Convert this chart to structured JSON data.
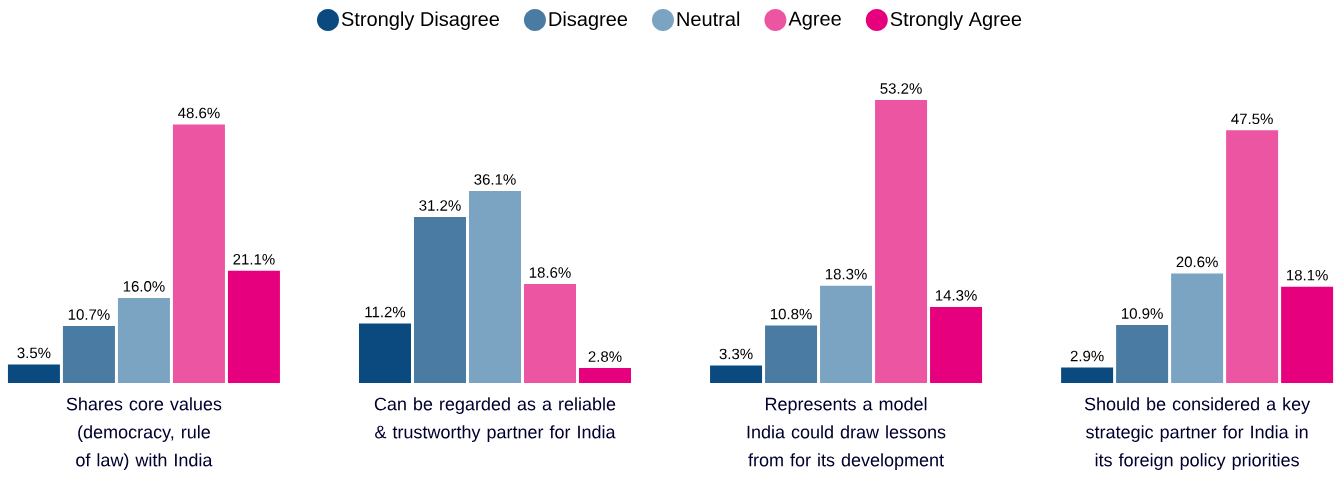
{
  "chart_data": {
    "type": "bar",
    "categories": [
      "Shares core values (democracy, rule of law) with India",
      "Can be regarded as a reliable & trustworthy partner for India",
      "Represents a model India could draw lessons from for its development",
      "Should be considered a key strategic partner for India in its foreign policy priorities"
    ],
    "series": [
      {
        "name": "Strongly Disagree",
        "color": "#0b4a7e",
        "values": [
          3.5,
          11.2,
          3.3,
          2.9
        ],
        "value_labels": [
          "3.5%",
          "11.2%",
          "3.3%",
          "2.9%"
        ]
      },
      {
        "name": "Disagree",
        "color": "#4a7ba3",
        "values": [
          10.7,
          31.2,
          10.8,
          10.9
        ],
        "value_labels": [
          "10.7%",
          "31.2%",
          "10.8%",
          "10.9%"
        ]
      },
      {
        "name": "Neutral",
        "color": "#7ba3c2",
        "values": [
          16.0,
          36.1,
          18.3,
          20.6
        ],
        "value_labels": [
          "16.0%",
          "36.1%",
          "18.3%",
          "20.6%"
        ]
      },
      {
        "name": "Agree",
        "color": "#ec55a1",
        "values": [
          48.6,
          18.6,
          53.2,
          47.5
        ],
        "value_labels": [
          "48.6%",
          "18.6%",
          "53.2%",
          "47.5%"
        ]
      },
      {
        "name": "Strongly Agree",
        "color": "#e6007e",
        "values": [
          21.1,
          2.8,
          14.3,
          18.1
        ],
        "value_labels": [
          "21.1%",
          "2.8%",
          "14.3%",
          "18.1%"
        ]
      }
    ],
    "legend": "top"
  }
}
